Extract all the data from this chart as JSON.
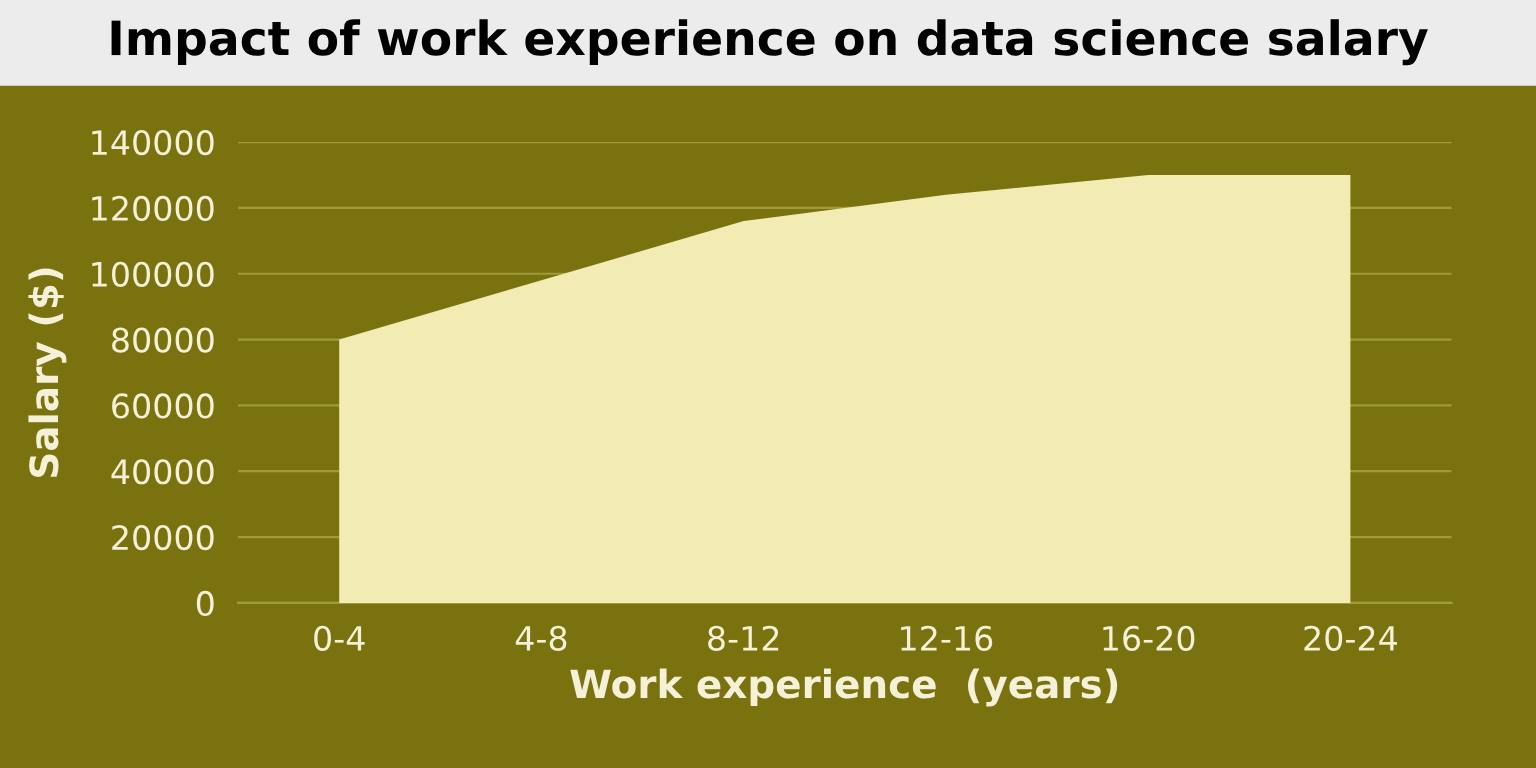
{
  "chart_data": {
    "type": "area",
    "title": "Impact of work experience on data science salary",
    "xlabel": "Work experience  (years)",
    "ylabel": "Salary ($)",
    "categories": [
      "0-4",
      "4-8",
      "8-12",
      "12-16",
      "16-20",
      "20-24"
    ],
    "series": [
      {
        "color": "#f2ecb4",
        "values": [
          80000,
          98000,
          116000,
          124000,
          130000,
          130000
        ]
      }
    ],
    "ylim": [
      0,
      140000
    ],
    "yticks": [
      0,
      20000,
      40000,
      60000,
      80000,
      100000,
      120000,
      140000
    ],
    "grid": "y",
    "legend": false
  }
}
